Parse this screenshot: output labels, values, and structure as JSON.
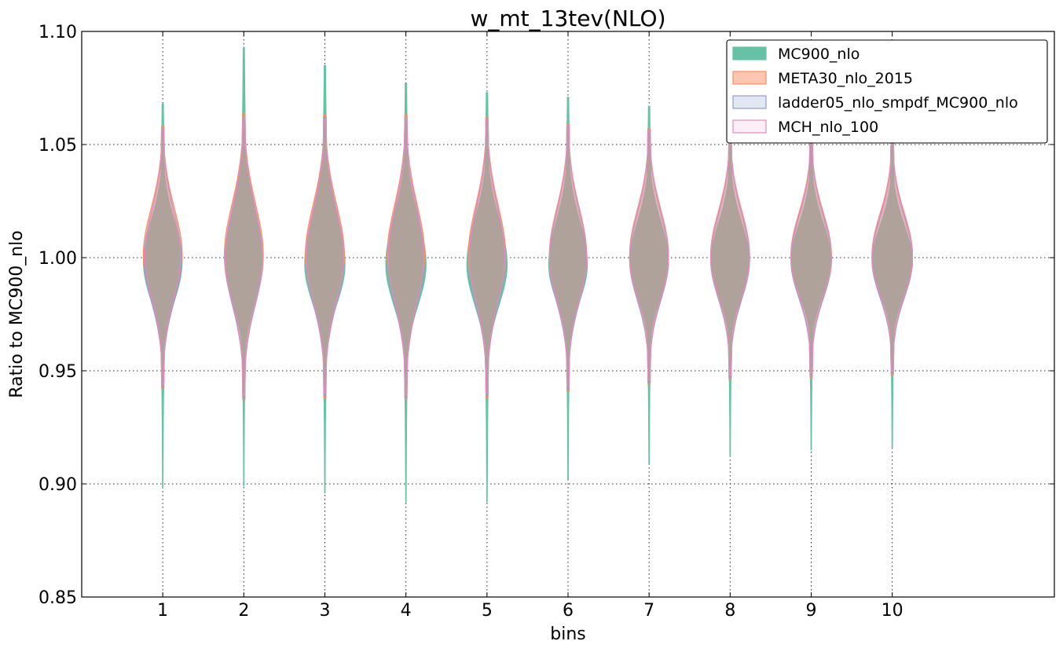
{
  "chart_data": {
    "type": "violin",
    "title": "w_mt_13tev(NLO)",
    "xlabel": "bins",
    "ylabel": "Ratio to MC900_nlo",
    "x_ticks": [
      "1",
      "2",
      "3",
      "4",
      "5",
      "6",
      "7",
      "8",
      "9",
      "10"
    ],
    "xlim": [
      0,
      12
    ],
    "ylim": [
      0.85,
      1.1
    ],
    "y_ticks": [
      "0.85",
      "0.90",
      "0.95",
      "1.00",
      "1.05",
      "1.10"
    ],
    "grid": true,
    "legend_position": "upper right",
    "series": [
      {
        "name": "MC900_nlo",
        "color": "#66c2a5",
        "fill_opacity": 1.0,
        "violins": [
          {
            "bin": 1,
            "min": 0.898,
            "max": 1.068,
            "median": 0.998,
            "width": 0.48
          },
          {
            "bin": 2,
            "min": 0.899,
            "max": 1.093,
            "median": 0.997,
            "width": 0.46
          },
          {
            "bin": 3,
            "min": 0.896,
            "max": 1.085,
            "median": 0.997,
            "width": 0.5
          },
          {
            "bin": 4,
            "min": 0.892,
            "max": 1.077,
            "median": 0.997,
            "width": 0.5
          },
          {
            "bin": 5,
            "min": 0.892,
            "max": 1.073,
            "median": 0.997,
            "width": 0.5
          },
          {
            "bin": 6,
            "min": 0.902,
            "max": 1.071,
            "median": 0.997,
            "width": 0.48
          },
          {
            "bin": 7,
            "min": 0.909,
            "max": 1.067,
            "median": 0.998,
            "width": 0.48
          },
          {
            "bin": 8,
            "min": 0.912,
            "max": 1.064,
            "median": 0.998,
            "width": 0.48
          },
          {
            "bin": 9,
            "min": 0.915,
            "max": 1.063,
            "median": 0.998,
            "width": 0.5
          },
          {
            "bin": 10,
            "min": 0.916,
            "max": 1.06,
            "median": 0.998,
            "width": 0.5
          }
        ]
      },
      {
        "name": "META30_nlo_2015",
        "color": "#fc8d62",
        "fill_opacity": 0.5,
        "violins": [
          {
            "bin": 1,
            "min": 0.942,
            "max": 1.058,
            "median": 1.001,
            "width": 0.48
          },
          {
            "bin": 2,
            "min": 0.937,
            "max": 1.064,
            "median": 1.001,
            "width": 0.48
          },
          {
            "bin": 3,
            "min": 0.938,
            "max": 1.063,
            "median": 1.001,
            "width": 0.48
          },
          {
            "bin": 4,
            "min": 0.937,
            "max": 1.063,
            "median": 1.001,
            "width": 0.46
          },
          {
            "bin": 5,
            "min": 0.938,
            "max": 1.062,
            "median": 1.001,
            "width": 0.46
          },
          {
            "bin": 6,
            "min": 0.941,
            "max": 1.059,
            "median": 1.001,
            "width": 0.46
          },
          {
            "bin": 7,
            "min": 0.944,
            "max": 1.057,
            "median": 1.001,
            "width": 0.48
          },
          {
            "bin": 8,
            "min": 0.946,
            "max": 1.055,
            "median": 1.001,
            "width": 0.48
          },
          {
            "bin": 9,
            "min": 0.947,
            "max": 1.053,
            "median": 1.001,
            "width": 0.5
          },
          {
            "bin": 10,
            "min": 0.948,
            "max": 1.052,
            "median": 1.001,
            "width": 0.5
          }
        ]
      },
      {
        "name": "ladder05_nlo_smpdf_MC900_nlo",
        "color": "#8da0cb",
        "fill_opacity": 0.25,
        "violins": [
          {
            "bin": 1,
            "min": 0.943,
            "max": 1.057,
            "median": 0.999,
            "width": 0.46
          },
          {
            "bin": 2,
            "min": 0.938,
            "max": 1.062,
            "median": 0.999,
            "width": 0.46
          },
          {
            "bin": 3,
            "min": 0.939,
            "max": 1.062,
            "median": 0.999,
            "width": 0.46
          },
          {
            "bin": 4,
            "min": 0.938,
            "max": 1.062,
            "median": 0.999,
            "width": 0.44
          },
          {
            "bin": 5,
            "min": 0.939,
            "max": 1.061,
            "median": 0.999,
            "width": 0.44
          },
          {
            "bin": 6,
            "min": 0.942,
            "max": 1.058,
            "median": 0.999,
            "width": 0.46
          },
          {
            "bin": 7,
            "min": 0.945,
            "max": 1.056,
            "median": 0.999,
            "width": 0.48
          },
          {
            "bin": 8,
            "min": 0.947,
            "max": 1.054,
            "median": 0.999,
            "width": 0.48
          },
          {
            "bin": 9,
            "min": 0.948,
            "max": 1.052,
            "median": 0.999,
            "width": 0.5
          },
          {
            "bin": 10,
            "min": 0.949,
            "max": 1.051,
            "median": 0.999,
            "width": 0.5
          }
        ]
      },
      {
        "name": "MCH_nlo_100",
        "color": "#e78ac3",
        "fill_opacity": 0.12,
        "violins": [
          {
            "bin": 1,
            "min": 0.944,
            "max": 1.057,
            "median": 1.0,
            "width": 0.44
          },
          {
            "bin": 2,
            "min": 0.939,
            "max": 1.062,
            "median": 1.0,
            "width": 0.46
          },
          {
            "bin": 3,
            "min": 0.94,
            "max": 1.061,
            "median": 1.0,
            "width": 0.46
          },
          {
            "bin": 4,
            "min": 0.939,
            "max": 1.062,
            "median": 1.0,
            "width": 0.44
          },
          {
            "bin": 5,
            "min": 0.94,
            "max": 1.061,
            "median": 1.0,
            "width": 0.44
          },
          {
            "bin": 6,
            "min": 0.943,
            "max": 1.058,
            "median": 1.0,
            "width": 0.46
          },
          {
            "bin": 7,
            "min": 0.946,
            "max": 1.056,
            "median": 1.0,
            "width": 0.48
          },
          {
            "bin": 8,
            "min": 0.948,
            "max": 1.054,
            "median": 1.0,
            "width": 0.48
          },
          {
            "bin": 9,
            "min": 0.949,
            "max": 1.052,
            "median": 1.0,
            "width": 0.5
          },
          {
            "bin": 10,
            "min": 0.95,
            "max": 1.051,
            "median": 1.0,
            "width": 0.5
          }
        ]
      }
    ]
  }
}
